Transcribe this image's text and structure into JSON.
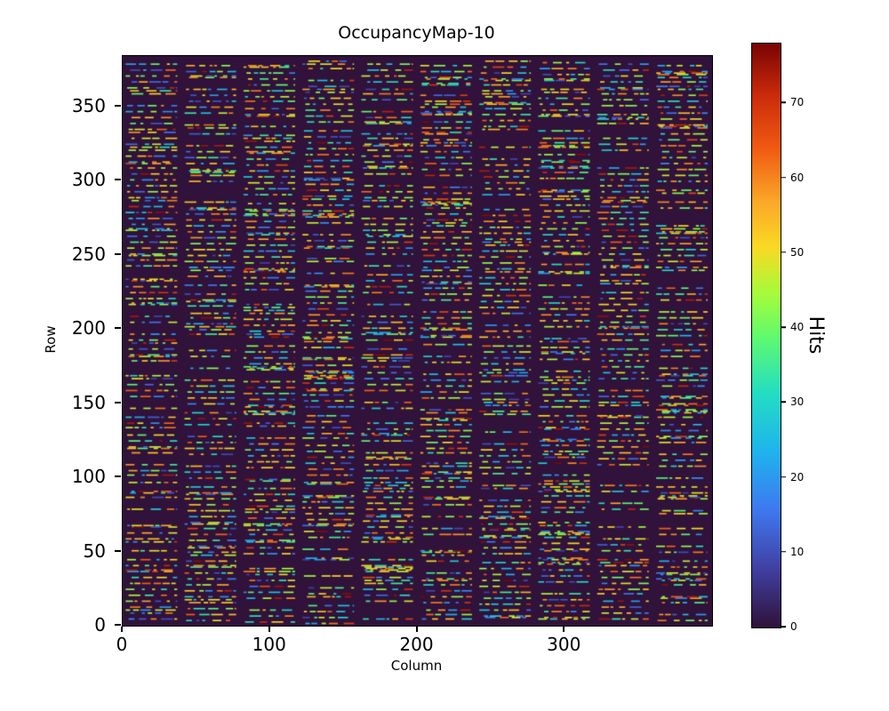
{
  "figure": {
    "background": "#ffffff",
    "frame_color": "#000000"
  },
  "chart_data": {
    "type": "heatmap",
    "title": "OccupancyMap-10",
    "xlabel": "Column",
    "ylabel": "Row",
    "colorbar_label": "Hits",
    "x_range": [
      0,
      400
    ],
    "y_range": [
      0,
      384
    ],
    "value_range": [
      0,
      78
    ],
    "xticks": [
      0,
      100,
      200,
      300
    ],
    "yticks": [
      0,
      50,
      100,
      150,
      200,
      250,
      300,
      350
    ],
    "colorbar_ticks": [
      0,
      10,
      20,
      30,
      40,
      50,
      60,
      70
    ],
    "colormap": "turbo",
    "background_value": 0,
    "colormap_stops": [
      [
        0.0,
        "#30123b"
      ],
      [
        0.1,
        "#4040a2"
      ],
      [
        0.2,
        "#3e78f0"
      ],
      [
        0.3,
        "#1fb3ee"
      ],
      [
        0.4,
        "#22ddc3"
      ],
      [
        0.5,
        "#62fb6c"
      ],
      [
        0.57,
        "#a4fc3c"
      ],
      [
        0.65,
        "#fada24"
      ],
      [
        0.73,
        "#fba729"
      ],
      [
        0.82,
        "#f05b12"
      ],
      [
        0.91,
        "#cc2c0b"
      ],
      [
        1.0,
        "#7a0403"
      ]
    ],
    "pattern": {
      "description": "sparse horizontal dash clusters of hit pixels arranged in 10 vertical chip-column blocks separated by empty vertical gaps on a zero-valued dark background",
      "num_blocks": 10,
      "block_width_cols": 35,
      "block_gap_cols": 5,
      "col_offset": 2,
      "row_start": 1,
      "row_end": 381,
      "active_row_period": 4,
      "seed": 1337,
      "dash_min_len": 2,
      "dash_max_len": 8
    }
  }
}
